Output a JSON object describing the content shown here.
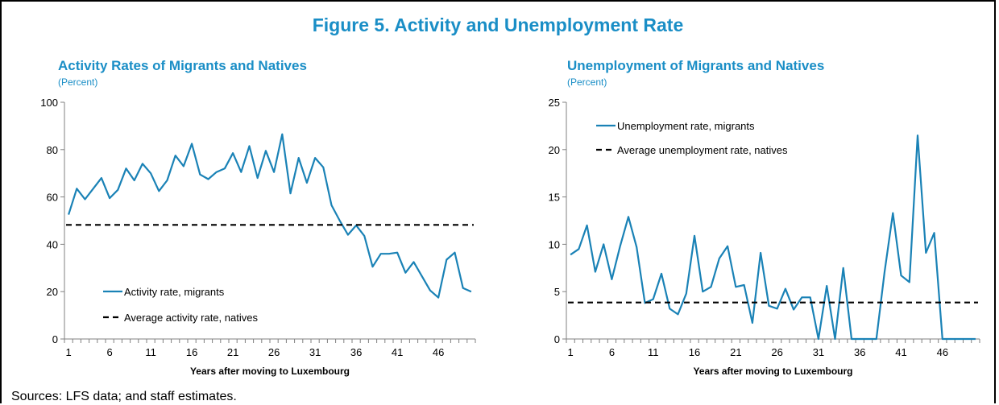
{
  "figure_title": "Figure 5. Activity and Unemployment Rate",
  "source_note": "Sources: LFS data; and staff estimates.",
  "colors": {
    "accent": "#1a8ec6",
    "series_line": "#1a82b6",
    "reference_line": "#000000"
  },
  "chart_data": [
    {
      "type": "line",
      "title": "Activity Rates of Migrants and Natives",
      "subtitle": "(Percent)",
      "xlabel": "Years after moving to Luxembourg",
      "ylabel": "",
      "x_tick_labels": [
        "1",
        "6",
        "11",
        "16",
        "21",
        "26",
        "31",
        "36",
        "41",
        "46"
      ],
      "y_tick_labels": [
        "0",
        "20",
        "40",
        "60",
        "80",
        "100"
      ],
      "ylim": [
        0,
        100
      ],
      "xlim": [
        1,
        50
      ],
      "legend_position": "bottom-left",
      "series": [
        {
          "name": "Activity rate, migrants",
          "style": "solid",
          "x": [
            1,
            2,
            3,
            4,
            5,
            6,
            7,
            8,
            9,
            10,
            11,
            12,
            13,
            14,
            15,
            16,
            17,
            18,
            19,
            20,
            21,
            22,
            23,
            24,
            25,
            26,
            27,
            28,
            29,
            30,
            31,
            32,
            33,
            34,
            35,
            36,
            37,
            38,
            39,
            40,
            41,
            42,
            43,
            44,
            45,
            46,
            47,
            48,
            49,
            50
          ],
          "values": [
            52.5,
            63.5,
            59,
            63.5,
            68,
            59.5,
            63,
            72,
            67,
            74,
            70,
            62.5,
            67,
            77.5,
            73,
            82.5,
            69.5,
            67.5,
            70.5,
            72,
            78.5,
            70.5,
            81.5,
            68,
            79.5,
            70.5,
            86.5,
            61.5,
            76.5,
            66,
            76.5,
            72.5,
            56.5,
            50,
            44,
            48,
            43.5,
            30.5,
            36,
            36,
            36.5,
            28,
            32.5,
            26.5,
            20.5,
            17.5,
            33.5,
            36.5,
            21.5,
            20
          ]
        },
        {
          "name": "Average activity rate, natives",
          "style": "dashed",
          "x": [
            1,
            50
          ],
          "values": [
            48.2,
            48.2
          ]
        }
      ]
    },
    {
      "type": "line",
      "title": "Unemployment of Migrants and Natives",
      "subtitle": "(Percent)",
      "xlabel": "Years after moving to Luxembourg",
      "ylabel": "",
      "x_tick_labels": [
        "1",
        "6",
        "11",
        "16",
        "21",
        "26",
        "31",
        "36",
        "41",
        "46"
      ],
      "y_tick_labels": [
        "0",
        "5",
        "10",
        "15",
        "20",
        "25"
      ],
      "ylim": [
        0,
        25
      ],
      "xlim": [
        1,
        50
      ],
      "legend_position": "top-left",
      "series": [
        {
          "name": "Unemployment rate, migrants",
          "style": "solid",
          "x": [
            1,
            2,
            3,
            4,
            5,
            6,
            7,
            8,
            9,
            10,
            11,
            12,
            13,
            14,
            15,
            16,
            17,
            18,
            19,
            20,
            21,
            22,
            23,
            24,
            25,
            26,
            27,
            28,
            29,
            30,
            31,
            32,
            33,
            34,
            35,
            36,
            37,
            38,
            39,
            40,
            41,
            42,
            43,
            44,
            45,
            46,
            47,
            48,
            49,
            50
          ],
          "values": [
            8.9,
            9.5,
            12,
            7.1,
            10,
            6.3,
            9.8,
            12.9,
            9.7,
            3.8,
            4.2,
            6.9,
            3.2,
            2.6,
            4.8,
            10.9,
            5,
            5.5,
            8.5,
            9.8,
            5.5,
            5.7,
            1.7,
            9.1,
            3.5,
            3.2,
            5.3,
            3.1,
            4.4,
            4.4,
            0,
            5.6,
            0,
            7.5,
            0,
            0,
            0,
            0,
            7.1,
            13.3,
            6.7,
            6,
            21.5,
            9.1,
            11.2,
            0,
            0,
            0,
            0,
            0
          ]
        },
        {
          "name": "Average unemployment rate, natives",
          "style": "dashed",
          "x": [
            1,
            50
          ],
          "values": [
            3.85,
            3.85
          ]
        }
      ]
    }
  ]
}
